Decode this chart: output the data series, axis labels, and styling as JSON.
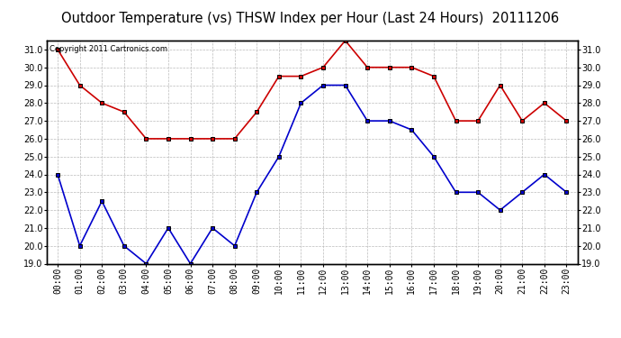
{
  "title": "Outdoor Temperature (vs) THSW Index per Hour (Last 24 Hours)  20111206",
  "copyright_text": "Copyright 2011 Cartronics.com",
  "hours": [
    "00:00",
    "01:00",
    "02:00",
    "03:00",
    "04:00",
    "05:00",
    "06:00",
    "07:00",
    "08:00",
    "09:00",
    "10:00",
    "11:00",
    "12:00",
    "13:00",
    "14:00",
    "15:00",
    "16:00",
    "17:00",
    "18:00",
    "19:00",
    "20:00",
    "21:00",
    "22:00",
    "23:00"
  ],
  "red_data": [
    31.0,
    29.0,
    28.0,
    27.5,
    26.0,
    26.0,
    26.0,
    26.0,
    26.0,
    27.5,
    29.5,
    29.5,
    30.0,
    31.5,
    30.0,
    30.0,
    30.0,
    29.5,
    27.0,
    27.0,
    29.0,
    27.0,
    28.0,
    27.0
  ],
  "blue_data": [
    24.0,
    20.0,
    22.5,
    20.0,
    19.0,
    21.0,
    19.0,
    21.0,
    20.0,
    23.0,
    25.0,
    28.0,
    29.0,
    29.0,
    27.0,
    27.0,
    26.5,
    25.0,
    23.0,
    23.0,
    22.0,
    23.0,
    24.0,
    23.0
  ],
  "red_color": "#cc0000",
  "blue_color": "#0000cc",
  "ylim": [
    19.0,
    31.5
  ],
  "yticks": [
    19.0,
    20.0,
    21.0,
    22.0,
    23.0,
    24.0,
    25.0,
    26.0,
    27.0,
    28.0,
    29.0,
    30.0,
    31.0
  ],
  "background_color": "#ffffff",
  "grid_color": "#bbbbbb",
  "title_fontsize": 10.5,
  "tick_fontsize": 7,
  "copyright_fontsize": 6,
  "marker": "s",
  "marker_size": 3.5,
  "marker_color": "#000000",
  "line_width": 1.2
}
